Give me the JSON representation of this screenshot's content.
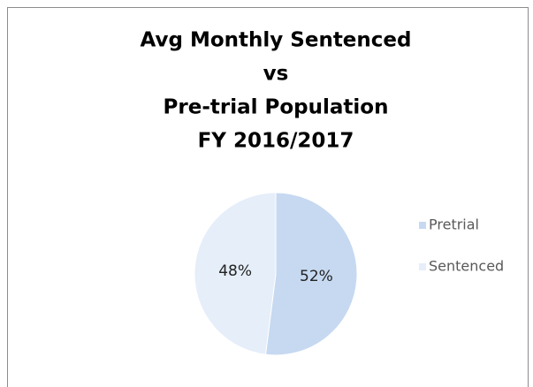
{
  "chart_data": {
    "type": "pie",
    "title": [
      "Avg Monthly Sentenced",
      "vs",
      "Pre-trial Population",
      "FY 2016/2017"
    ],
    "categories": [
      "Pretrial",
      "Sentenced"
    ],
    "values": [
      52,
      48
    ],
    "value_labels": [
      "52%",
      "48%"
    ],
    "colors": [
      "#c6d9f1",
      "#e5eef9"
    ],
    "legend": "right"
  }
}
